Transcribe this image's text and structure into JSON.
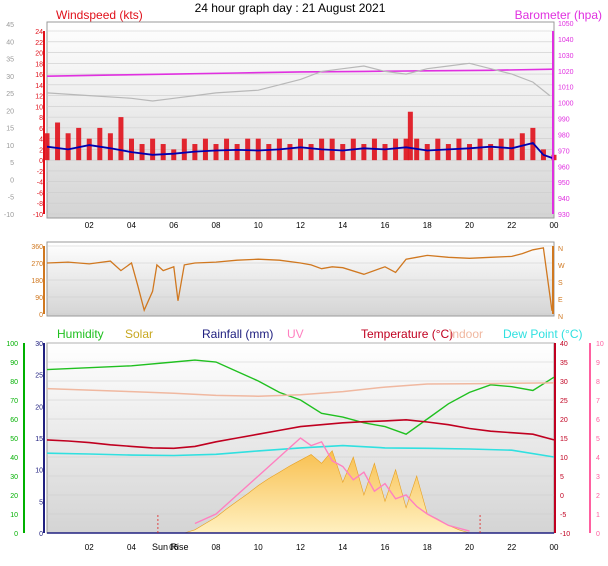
{
  "title": "24 hour graph day : 21 August 2021",
  "colors": {
    "windspeed": "#e0101a",
    "gust": "#ff0000",
    "avg_wind": "#0000b0",
    "barometer": "#e030e0",
    "baro_gray": "#b8b8b8",
    "direction": "#d07820",
    "humidity": "#20c020",
    "solar": "#f4b440",
    "rainfall": "#202080",
    "uv": "#ff80c0",
    "temperature": "#c00020",
    "indoor": "#f0b8a0",
    "dewpoint": "#30e0e0",
    "axis_green": "#00b000",
    "axis_pink": "#ff60a0",
    "grid": "#cccccc"
  },
  "chart_data": [
    {
      "type": "line",
      "name": "wind-barometer",
      "left_label": "Windspeed (kts)",
      "right_label": "Barometer (hpa)",
      "x_ticks": [
        "02",
        "04",
        "06",
        "08",
        "10",
        "12",
        "14",
        "16",
        "18",
        "20",
        "22",
        "00"
      ],
      "left_ticks": [
        "24",
        "22",
        "20",
        "18",
        "16",
        "14",
        "12",
        "10",
        "8",
        "6",
        "4",
        "2",
        "0",
        "-2",
        "-4",
        "-6",
        "-8",
        "-10"
      ],
      "left_gray_ticks": [
        "45",
        "40",
        "35",
        "30",
        "25",
        "20",
        "15",
        "10",
        "5",
        "0",
        "-5",
        "-10"
      ],
      "right_ticks": [
        "1050",
        "1040",
        "1030",
        "1020",
        "1010",
        "1000",
        "990",
        "980",
        "970",
        "960",
        "950",
        "940",
        "930"
      ],
      "series": [
        {
          "key": "barometer",
          "x": [
            0,
            3,
            6,
            9,
            12,
            15,
            18,
            21,
            24
          ],
          "y": [
            15.6,
            15.8,
            16.0,
            16.2,
            16.4,
            16.5,
            16.6,
            16.7,
            16.9
          ]
        },
        {
          "key": "baro_gray",
          "x": [
            0,
            2,
            4,
            5,
            6,
            7,
            8,
            10,
            11,
            12,
            13,
            14,
            15,
            16,
            17,
            18,
            19,
            20,
            21,
            22,
            23,
            23.8
          ],
          "y": [
            12.5,
            12.0,
            11.5,
            11.0,
            11.5,
            12.0,
            12.5,
            13.0,
            14.0,
            15.0,
            16.5,
            17.0,
            17.5,
            16.5,
            16.0,
            17.0,
            17.5,
            18.0,
            17.0,
            16.0,
            14.5,
            12.0
          ]
        },
        {
          "key": "avg_wind",
          "x": [
            0,
            1,
            2,
            3,
            4,
            5,
            6,
            7,
            8,
            9,
            10,
            11,
            12,
            13,
            14,
            15,
            16,
            17,
            18,
            19,
            20,
            21,
            22,
            23,
            23.5,
            24
          ],
          "y": [
            2.5,
            2.0,
            2.8,
            2.2,
            1.5,
            1.0,
            1.2,
            1.6,
            1.8,
            1.9,
            1.8,
            2.0,
            2.4,
            2.0,
            1.8,
            2.2,
            2.0,
            2.4,
            1.8,
            2.0,
            2.2,
            2.5,
            2.2,
            3.2,
            1.0,
            0.3
          ]
        },
        {
          "key": "gust",
          "x": [
            0,
            0.5,
            1,
            1.5,
            2,
            2.5,
            3,
            3.5,
            4,
            4.5,
            5,
            5.5,
            6,
            6.5,
            7,
            7.5,
            8,
            8.5,
            9,
            9.5,
            10,
            10.5,
            11,
            11.5,
            12,
            12.5,
            13,
            13.5,
            14,
            14.5,
            15,
            15.5,
            16,
            16.5,
            17,
            17.2,
            17.5,
            18,
            18.5,
            19,
            19.5,
            20,
            20.5,
            21,
            21.5,
            22,
            22.5,
            23,
            23.5,
            24
          ],
          "y": [
            5,
            7,
            5,
            6,
            4,
            6,
            5,
            8,
            4,
            3,
            4,
            3,
            2,
            4,
            3,
            4,
            3,
            4,
            3,
            4,
            4,
            3,
            4,
            3,
            4,
            3,
            4,
            4,
            3,
            4,
            3,
            4,
            3,
            4,
            4,
            9,
            4,
            3,
            4,
            3,
            4,
            3,
            4,
            3,
            4,
            4,
            5,
            6,
            2,
            1
          ]
        }
      ]
    },
    {
      "type": "line",
      "name": "wind-direction",
      "left_ticks": [
        "360",
        "270",
        "180",
        "90",
        "0"
      ],
      "right_ticks": [
        "N",
        "W",
        "S",
        "E",
        "N"
      ],
      "series": [
        {
          "key": "direction",
          "x": [
            0,
            1,
            2,
            3,
            3.5,
            4,
            4.3,
            4.6,
            5,
            5.2,
            5.5,
            6,
            6.2,
            6.5,
            7,
            8,
            9,
            10,
            11,
            12,
            12.5,
            13,
            13.5,
            14,
            15,
            16,
            16.5,
            17,
            17.5,
            18,
            19,
            20,
            21,
            22,
            22.5,
            23,
            23.5,
            23.9,
            24
          ],
          "y": [
            270,
            275,
            265,
            280,
            230,
            270,
            150,
            20,
            120,
            260,
            230,
            250,
            70,
            260,
            270,
            275,
            285,
            290,
            285,
            270,
            260,
            240,
            250,
            245,
            210,
            250,
            220,
            290,
            300,
            310,
            300,
            295,
            300,
            305,
            320,
            340,
            350,
            20,
            20
          ]
        }
      ]
    },
    {
      "type": "line",
      "name": "temperature-humidity-solar",
      "legend": [
        "Humidity",
        "Solar",
        "Rainfall (mm)",
        "UV",
        "Temperature (°C)",
        "Indoor",
        "Dew Point (°C)"
      ],
      "x_ticks": [
        "02",
        "04",
        "06",
        "08",
        "10",
        "12",
        "14",
        "16",
        "18",
        "20",
        "22",
        "00"
      ],
      "sunrise_label": "Sun Rise",
      "left_green_ticks": [
        "100",
        "90",
        "80",
        "70",
        "60",
        "50",
        "40",
        "30",
        "20",
        "10",
        "0"
      ],
      "left_ticks": [
        "30",
        "25",
        "20",
        "15",
        "10",
        "5",
        "0"
      ],
      "right_ticks": [
        "40",
        "35",
        "30",
        "25",
        "20",
        "15",
        "10",
        "5",
        "0",
        "-5",
        "-10"
      ],
      "right_pink_ticks": [
        "10",
        "9",
        "8",
        "7",
        "6",
        "5",
        "4",
        "3",
        "2",
        "1",
        "0"
      ],
      "series": [
        {
          "key": "humidity",
          "x": [
            0,
            2,
            4,
            6,
            7,
            8,
            9,
            10,
            11,
            12,
            13,
            14,
            15,
            16,
            17,
            18,
            19,
            20,
            21,
            22,
            23,
            24
          ],
          "y": [
            86,
            87,
            88,
            90,
            91,
            90,
            85,
            80,
            74,
            70,
            63,
            61,
            58,
            56,
            52,
            60,
            68,
            74,
            78,
            77,
            75,
            82
          ]
        },
        {
          "key": "temperature",
          "x": [
            0,
            1,
            2,
            3,
            4,
            5,
            6,
            7,
            8,
            9,
            10,
            11,
            12,
            13,
            14,
            15,
            16,
            17,
            18,
            19,
            20,
            21,
            22,
            23,
            24
          ],
          "y": [
            14.5,
            14.2,
            13.8,
            13.2,
            12.8,
            12.4,
            12.3,
            12.8,
            14.0,
            15.0,
            16.0,
            17.0,
            18.0,
            18.5,
            19.0,
            19.3,
            19.5,
            19.8,
            19.2,
            18.5,
            17.5,
            16.8,
            16.4,
            16.0,
            14.5
          ]
        },
        {
          "key": "indoor",
          "x": [
            0,
            2,
            4,
            6,
            8,
            10,
            12,
            14,
            16,
            18,
            20,
            22,
            24
          ],
          "y": [
            28.0,
            27.6,
            27.2,
            26.8,
            26.2,
            26.0,
            26.4,
            27.2,
            28.4,
            29.2,
            29.3,
            29.4,
            29.5
          ]
        },
        {
          "key": "dewpoint",
          "x": [
            0,
            2,
            4,
            6,
            8,
            10,
            12,
            14,
            16,
            18,
            20,
            22,
            24
          ],
          "y": [
            11.0,
            10.8,
            10.5,
            10.4,
            10.7,
            11.6,
            12.4,
            13.0,
            12.4,
            12.3,
            12.1,
            11.8,
            10.0
          ]
        },
        {
          "key": "solar",
          "x": [
            6.5,
            7,
            7.5,
            8,
            8.5,
            9,
            9.5,
            10,
            10.5,
            11,
            11.5,
            12,
            12.5,
            13,
            13.5,
            14,
            14.5,
            15,
            15.5,
            16,
            16.5,
            17,
            17.5,
            18,
            18.5,
            19,
            19.5,
            20
          ],
          "y": [
            0,
            0.5,
            1.5,
            2.5,
            3.8,
            5,
            6.2,
            7.5,
            8.6,
            9.6,
            10.6,
            11.5,
            12.4,
            11,
            13,
            8,
            12,
            6,
            11,
            5,
            10,
            4,
            9,
            3,
            2.2,
            1.2,
            0.5,
            0
          ]
        },
        {
          "key": "uv",
          "x": [
            7,
            8,
            9,
            10,
            11,
            11.5,
            12,
            12.5,
            13,
            13.5,
            14,
            14.5,
            15,
            15.5,
            16,
            16.5,
            17,
            17.5,
            18,
            19,
            20
          ],
          "y": [
            0.5,
            1.0,
            2.0,
            3.0,
            4.0,
            4.5,
            5.0,
            4.6,
            4.8,
            3.8,
            3.5,
            2.8,
            3.2,
            2.2,
            2.6,
            1.8,
            2.0,
            1.4,
            1.0,
            0.4,
            0.1
          ]
        },
        {
          "key": "rainfall",
          "x": [
            0,
            24
          ],
          "y": [
            0,
            0
          ]
        }
      ],
      "left_range": [
        0,
        30
      ],
      "right_range": [
        -10,
        40
      ],
      "uv_range": [
        0,
        10
      ]
    }
  ]
}
